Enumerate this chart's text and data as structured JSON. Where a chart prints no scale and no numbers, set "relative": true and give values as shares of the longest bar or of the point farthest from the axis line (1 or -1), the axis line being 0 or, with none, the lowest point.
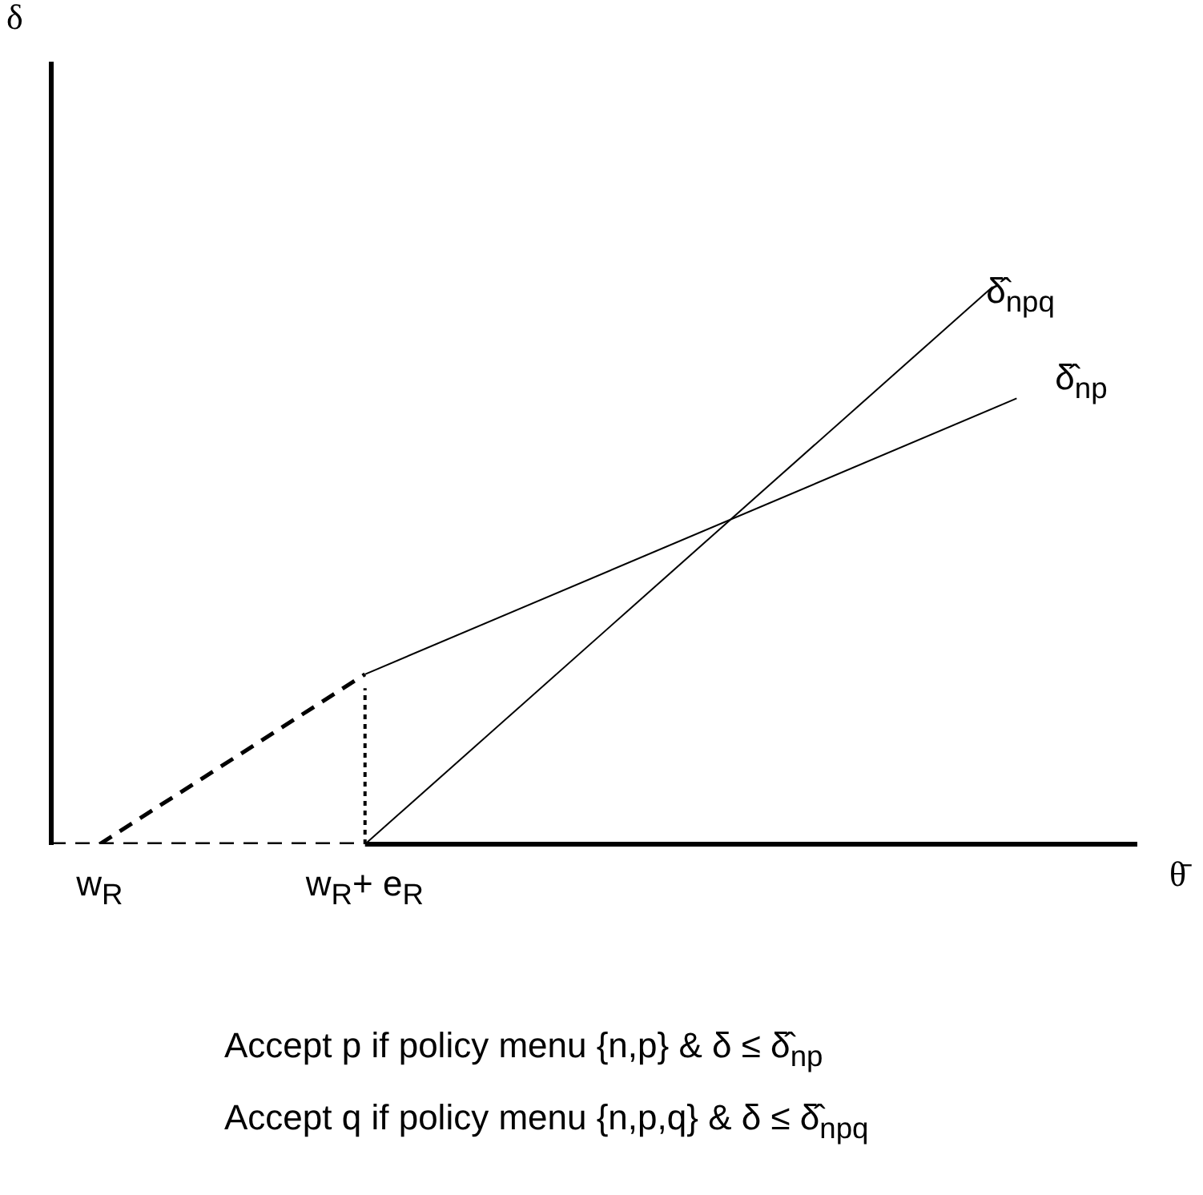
{
  "chart_data": {
    "type": "line",
    "relative": true,
    "xlabel": "θ̄",
    "categories": [
      null,
      null,
      "w$_{R}$",
      null,
      null,
      null,
      null,
      null,
      null,
      null,
      null,
      null,
      null,
      "w$_{R}$+ e$_{R}$",
      null,
      null,
      null,
      null,
      null,
      null,
      null,
      null,
      null,
      null,
      null,
      null,
      null,
      null,
      null,
      null,
      null,
      null,
      null,
      null,
      null,
      null,
      null,
      null,
      null,
      null,
      null,
      null,
      null,
      null,
      null,
      null
    ],
    "tick_labels": "x",
    "grid": false,
    "legend": false,
    "marker": "none",
    "series": [
      {
        "name": "δ̂$_{npq}$",
        "color": "#000000",
        "line_style": "solid",
        "values": [
          null,
          null,
          null,
          null,
          null,
          null,
          null,
          null,
          null,
          null,
          null,
          null,
          null,
          0,
          null,
          null,
          null,
          null,
          null,
          null,
          null,
          null,
          null,
          null,
          null,
          null,
          null,
          null,
          null,
          null,
          null,
          null,
          null,
          null,
          null,
          null,
          null,
          null,
          null,
          1,
          null,
          null,
          null,
          null,
          null,
          null
        ]
      },
      {
        "name": "δ̂$_{np}$",
        "color": "#000000",
        "line_style": "solid",
        "values": [
          null,
          null,
          null,
          null,
          null,
          null,
          null,
          null,
          null,
          null,
          null,
          null,
          null,
          0.305,
          null,
          null,
          null,
          null,
          null,
          null,
          null,
          null,
          null,
          null,
          null,
          null,
          null,
          null,
          null,
          null,
          null,
          null,
          null,
          null,
          null,
          null,
          null,
          null,
          null,
          null,
          0.8,
          null,
          null,
          null,
          null,
          null
        ]
      },
      {
        "color": "#000000",
        "line_style": "dashed",
        "values": [
          null,
          null,
          0,
          null,
          null,
          null,
          null,
          null,
          null,
          null,
          null,
          null,
          null,
          0.305,
          null,
          null,
          null,
          null,
          null,
          null,
          null,
          null,
          null,
          null,
          null,
          null,
          null,
          null,
          null,
          null,
          null,
          null,
          null,
          null,
          null,
          null,
          null,
          null,
          null,
          null,
          null,
          null,
          null,
          null,
          null,
          null
        ]
      },
      {
        "color": "#000000",
        "line_style": "dashed",
        "values": [
          0,
          null,
          null,
          null,
          null,
          null,
          null,
          null,
          null,
          null,
          null,
          null,
          null,
          0,
          null,
          null,
          null,
          null,
          null,
          null,
          null,
          null,
          null,
          null,
          null,
          null,
          null,
          null,
          null,
          null,
          null,
          null,
          null,
          null,
          null,
          null,
          null,
          null,
          null,
          null,
          null,
          null,
          null,
          null,
          null,
          null
        ]
      },
      {
        "color": "#000000",
        "line_style": "dotted",
        "x": [
          "w$_{R}$+ e$_{R}$",
          "w$_{R}$+ e$_{R}$"
        ],
        "values": [
          0,
          0.28
        ]
      }
    ],
    "annotations": [
      "δ",
      "Accept p if policy menu {n,p} & δ ≤ δ̂$_{np}$",
      "Accept q if policy menu {n,p,q} & δ ≤ δ̂$_{npq}$"
    ]
  }
}
